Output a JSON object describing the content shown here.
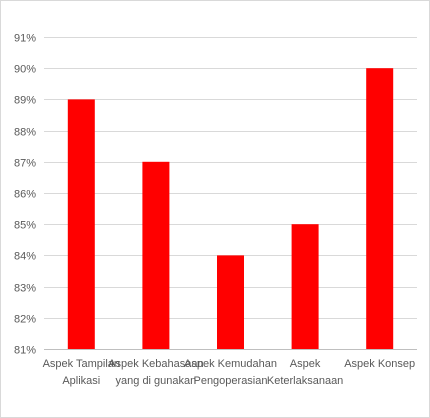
{
  "chart_data": {
    "type": "bar",
    "categories": [
      [
        "Aspek Tampilan",
        "Aplikasi"
      ],
      [
        "Aspek Kebahasaan",
        "yang di gunakan"
      ],
      [
        "Aspek Kemudahan",
        "Pengoperasian"
      ],
      [
        "Aspek",
        "Keterlaksanaan"
      ],
      [
        "Aspek Konsep"
      ]
    ],
    "values": [
      89,
      87,
      84,
      85,
      90
    ],
    "ylim": [
      81,
      91
    ],
    "yticks": [
      81,
      82,
      83,
      84,
      85,
      86,
      87,
      88,
      89,
      90,
      91
    ],
    "ytick_labels": [
      "81%",
      "82%",
      "83%",
      "84%",
      "85%",
      "86%",
      "87%",
      "88%",
      "89%",
      "90%",
      "91%"
    ],
    "bar_color": "#ff0000",
    "grid": true,
    "title": "",
    "xlabel": "",
    "ylabel": ""
  }
}
